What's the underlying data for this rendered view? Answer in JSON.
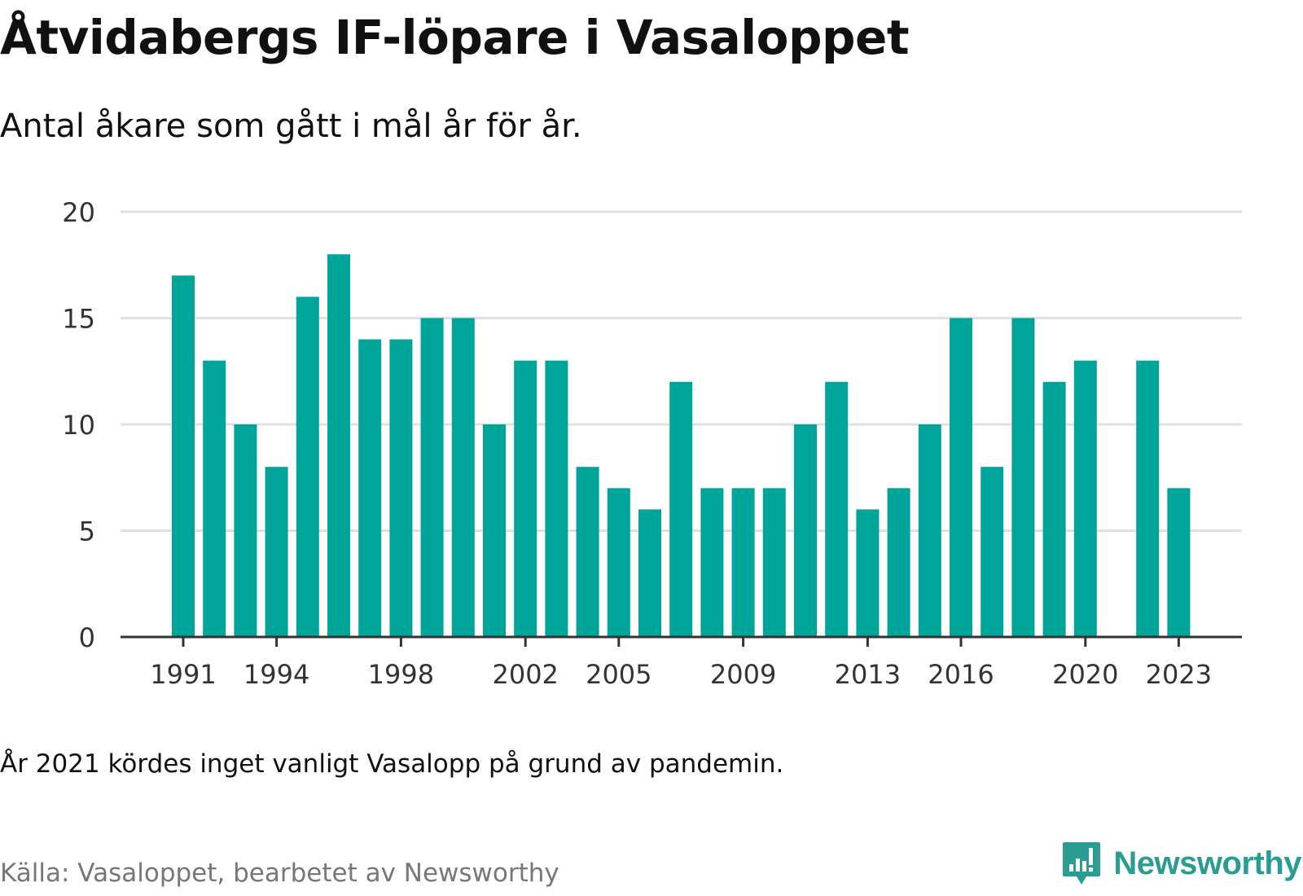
{
  "title": "Åtvidabergs IF-löpare i Vasaloppet",
  "subtitle": "Antal åkare som gått i mål år för år.",
  "note": "År 2021 kördes inget vanligt Vasalopp på grund av pandemin.",
  "source": "Källa: Vasaloppet, bearbetet av Newsworthy",
  "brand": {
    "name": "Newsworthy",
    "icon": "newsworthy-logo-icon",
    "color": "#2a9d92"
  },
  "chart_data": {
    "type": "bar",
    "categories": [
      1991,
      1992,
      1993,
      1994,
      1995,
      1996,
      1997,
      1998,
      1999,
      2000,
      2001,
      2002,
      2003,
      2004,
      2005,
      2006,
      2007,
      2008,
      2009,
      2010,
      2011,
      2012,
      2013,
      2014,
      2015,
      2016,
      2017,
      2018,
      2019,
      2020,
      2021,
      2022,
      2023
    ],
    "values": [
      17,
      13,
      10,
      8,
      16,
      18,
      14,
      14,
      15,
      15,
      10,
      13,
      13,
      8,
      7,
      6,
      12,
      7,
      7,
      7,
      10,
      12,
      6,
      7,
      10,
      15,
      8,
      15,
      12,
      13,
      null,
      13,
      7
    ],
    "x_tick_labels": [
      "1991",
      "1994",
      "1998",
      "2002",
      "2005",
      "2009",
      "2013",
      "2016",
      "2020",
      "2023"
    ],
    "y_ticks": [
      0,
      5,
      10,
      15,
      20
    ],
    "ylim": [
      0,
      20
    ],
    "xlabel": "",
    "ylabel": "",
    "grid": true,
    "bar_color": "#00a59a",
    "grid_color": "#e0e0e0",
    "axis_color": "#333333"
  }
}
